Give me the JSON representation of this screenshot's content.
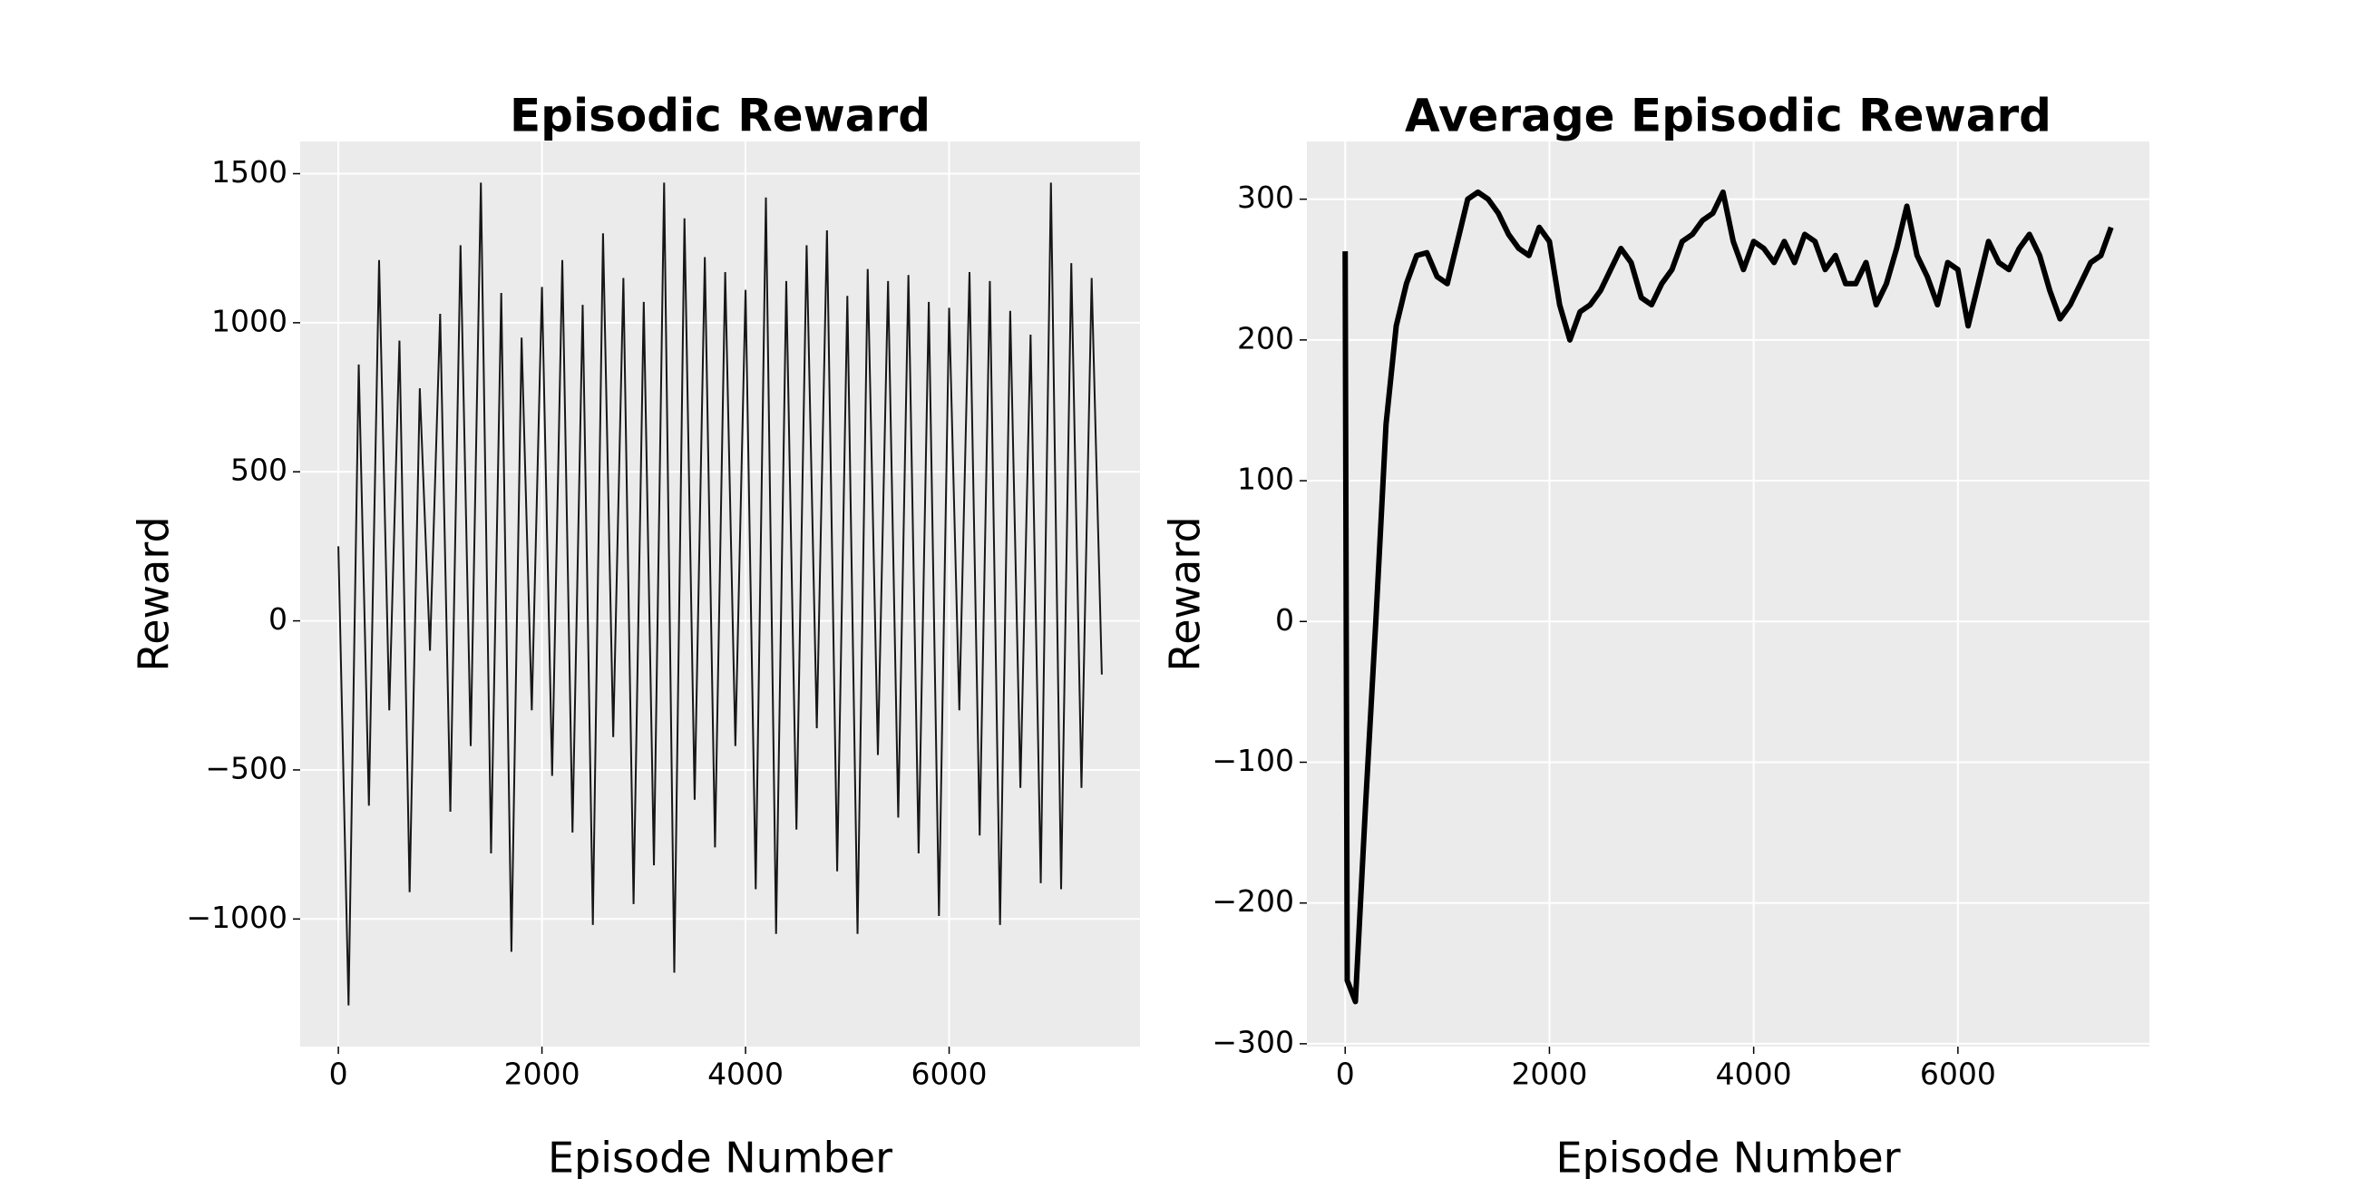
{
  "chart_data": [
    {
      "type": "line",
      "title": "Episodic Reward",
      "xlabel": "Episode Number",
      "ylabel": "Reward",
      "color": "#171717",
      "background": "#ebebeb",
      "grid": true,
      "x": [
        0,
        100,
        200,
        300,
        400,
        500,
        600,
        700,
        800,
        900,
        1000,
        1100,
        1200,
        1300,
        1400,
        1500,
        1600,
        1700,
        1800,
        1900,
        2000,
        2100,
        2200,
        2300,
        2400,
        2500,
        2600,
        2700,
        2800,
        2900,
        3000,
        3100,
        3200,
        3300,
        3400,
        3500,
        3600,
        3700,
        3800,
        3900,
        4000,
        4100,
        4200,
        4300,
        4400,
        4500,
        4600,
        4700,
        4800,
        4900,
        5000,
        5100,
        5200,
        5300,
        5400,
        5500,
        5600,
        5700,
        5800,
        5900,
        6000,
        6100,
        6200,
        6300,
        6400,
        6500,
        6600,
        6700,
        6800,
        6900,
        7000,
        7100,
        7200,
        7300,
        7400,
        7500
      ],
      "values": [
        250,
        -1290,
        860,
        -620,
        1210,
        -300,
        940,
        -910,
        780,
        -100,
        1030,
        -640,
        1260,
        -420,
        1470,
        -780,
        1100,
        -1110,
        950,
        -300,
        1120,
        -520,
        1210,
        -710,
        1060,
        -1020,
        1300,
        -390,
        1150,
        -950,
        1070,
        -820,
        1470,
        -1180,
        1350,
        -600,
        1220,
        -760,
        1170,
        -420,
        1110,
        -900,
        1420,
        -1050,
        1140,
        -700,
        1260,
        -360,
        1310,
        -840,
        1090,
        -1050,
        1180,
        -450,
        1140,
        -660,
        1160,
        -780,
        1070,
        -990,
        1050,
        -300,
        1170,
        -720,
        1140,
        -1020,
        1040,
        -560,
        960,
        -880,
        1470,
        -900,
        1200,
        -560,
        1150,
        -180
      ],
      "xlim": [
        -375,
        7875
      ],
      "xticks": [
        0,
        2000,
        4000,
        6000
      ],
      "ylim": [
        -1428,
        1608
      ],
      "yticks": [
        {
          "value": -1000,
          "label": "−1000"
        },
        {
          "value": -500,
          "label": "−500"
        },
        0,
        500,
        1000,
        1500
      ]
    },
    {
      "type": "line",
      "title": "Average Episodic Reward",
      "xlabel": "Episode Number",
      "ylabel": "Reward",
      "color": "#000000",
      "background": "#ebebeb",
      "grid": true,
      "x": [
        0,
        20,
        100,
        200,
        300,
        400,
        500,
        600,
        700,
        800,
        900,
        1000,
        1100,
        1200,
        1300,
        1400,
        1500,
        1600,
        1700,
        1800,
        1900,
        2000,
        2100,
        2200,
        2300,
        2400,
        2500,
        2600,
        2700,
        2800,
        2900,
        3000,
        3100,
        3200,
        3300,
        3400,
        3500,
        3600,
        3700,
        3800,
        3900,
        4000,
        4100,
        4200,
        4300,
        4400,
        4500,
        4600,
        4700,
        4800,
        4900,
        5000,
        5100,
        5200,
        5300,
        5400,
        5500,
        5600,
        5700,
        5800,
        5900,
        6000,
        6100,
        6200,
        6300,
        6400,
        6500,
        6600,
        6700,
        6800,
        6900,
        7000,
        7100,
        7200,
        7300,
        7400,
        7500
      ],
      "values": [
        263,
        -255,
        -270,
        -130,
        0,
        140,
        210,
        240,
        260,
        262,
        245,
        240,
        270,
        300,
        305,
        300,
        290,
        275,
        265,
        260,
        280,
        270,
        225,
        200,
        220,
        225,
        235,
        250,
        265,
        255,
        230,
        225,
        240,
        250,
        270,
        275,
        285,
        290,
        305,
        270,
        250,
        270,
        265,
        255,
        270,
        255,
        275,
        270,
        250,
        260,
        240,
        240,
        255,
        225,
        240,
        265,
        295,
        260,
        245,
        225,
        255,
        250,
        210,
        240,
        270,
        255,
        250,
        265,
        275,
        260,
        235,
        215,
        225,
        240,
        255,
        260,
        280
      ],
      "xlim": [
        -375,
        7875
      ],
      "xticks": [
        0,
        2000,
        4000,
        6000
      ],
      "ylim": [
        -302,
        341
      ],
      "yticks": [
        {
          "value": -300,
          "label": "−300"
        },
        {
          "value": -200,
          "label": "−200"
        },
        {
          "value": -100,
          "label": "−100"
        },
        0,
        100,
        200,
        300
      ]
    }
  ]
}
